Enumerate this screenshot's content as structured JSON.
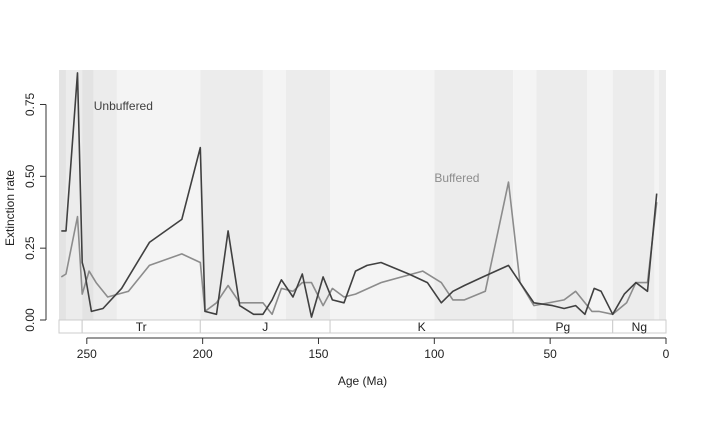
{
  "chart_data": {
    "type": "line",
    "xlabel": "Age (Ma)",
    "ylabel": "Extinction rate",
    "xlim": [
      262,
      0
    ],
    "ylim": [
      0,
      0.87
    ],
    "x_ticks": [
      250,
      200,
      150,
      100,
      50,
      0
    ],
    "y_ticks": [
      0.0,
      0.25,
      0.5,
      0.75
    ],
    "y_tick_labels": [
      "0.00",
      "0.25",
      "0.50",
      "0.75"
    ],
    "grid": false,
    "periods": [
      {
        "label": "",
        "start": 262,
        "end": 252
      },
      {
        "label": "Tr",
        "start": 252,
        "end": 201
      },
      {
        "label": "J",
        "start": 201,
        "end": 145
      },
      {
        "label": "K",
        "start": 145,
        "end": 66
      },
      {
        "label": "Pg",
        "start": 66,
        "end": 23
      },
      {
        "label": "Ng",
        "start": 23,
        "end": 0
      }
    ],
    "stage_bands": [
      {
        "start": 262,
        "end": 259,
        "shade": "dark"
      },
      {
        "start": 259,
        "end": 252,
        "shade": "light"
      },
      {
        "start": 252,
        "end": 247,
        "shade": "dark"
      },
      {
        "start": 247,
        "end": 237,
        "shade": "light"
      },
      {
        "start": 237,
        "end": 201,
        "shade": "lighter"
      },
      {
        "start": 201,
        "end": 174,
        "shade": "light"
      },
      {
        "start": 174,
        "end": 164,
        "shade": "lighter"
      },
      {
        "start": 164,
        "end": 145,
        "shade": "light"
      },
      {
        "start": 145,
        "end": 100,
        "shade": "lighter"
      },
      {
        "start": 100,
        "end": 66,
        "shade": "light"
      },
      {
        "start": 66,
        "end": 56,
        "shade": "lighter"
      },
      {
        "start": 56,
        "end": 34,
        "shade": "light"
      },
      {
        "start": 34,
        "end": 23,
        "shade": "lighter"
      },
      {
        "start": 23,
        "end": 5,
        "shade": "light"
      },
      {
        "start": 5,
        "end": 3,
        "shade": "lighter"
      },
      {
        "start": 3,
        "end": 0,
        "shade": "light"
      }
    ],
    "series": [
      {
        "name": "Unbuffered",
        "color": "#404040",
        "label_at": [
          247,
          0.73
        ],
        "x": [
          261,
          259,
          254,
          252,
          251,
          248,
          243,
          235,
          223,
          209,
          201,
          199,
          194,
          189,
          184,
          178,
          174,
          170,
          166,
          161,
          157,
          153,
          148,
          144,
          139,
          134,
          129,
          123,
          111,
          103,
          97,
          92,
          87,
          79,
          68,
          63,
          57,
          49,
          44,
          39,
          35,
          31,
          28,
          23,
          18,
          13,
          8,
          4
        ],
        "y": [
          0.31,
          0.31,
          0.86,
          0.2,
          0.17,
          0.03,
          0.04,
          0.11,
          0.27,
          0.35,
          0.6,
          0.03,
          0.02,
          0.31,
          0.05,
          0.02,
          0.02,
          0.07,
          0.14,
          0.08,
          0.16,
          0.01,
          0.15,
          0.07,
          0.06,
          0.17,
          0.19,
          0.2,
          0.16,
          0.13,
          0.06,
          0.1,
          0.12,
          0.15,
          0.19,
          0.13,
          0.06,
          0.05,
          0.04,
          0.05,
          0.02,
          0.11,
          0.1,
          0.02,
          0.09,
          0.13,
          0.1,
          0.44
        ]
      },
      {
        "name": "Buffered",
        "color": "#8c8c8c",
        "label_at": [
          100,
          0.48
        ],
        "x": [
          261,
          259,
          254,
          252,
          249,
          246,
          241,
          232,
          223,
          209,
          201,
          199,
          194,
          189,
          184,
          174,
          170,
          166,
          161,
          157,
          153,
          148,
          144,
          139,
          134,
          123,
          105,
          97,
          92,
          87,
          78,
          68,
          63,
          57,
          44,
          39,
          32,
          29,
          23,
          17,
          13,
          8,
          4
        ],
        "y": [
          0.15,
          0.16,
          0.36,
          0.09,
          0.17,
          0.13,
          0.08,
          0.1,
          0.19,
          0.23,
          0.2,
          0.03,
          0.06,
          0.12,
          0.06,
          0.06,
          0.02,
          0.11,
          0.1,
          0.13,
          0.13,
          0.05,
          0.11,
          0.08,
          0.09,
          0.13,
          0.17,
          0.13,
          0.07,
          0.07,
          0.1,
          0.48,
          0.13,
          0.05,
          0.07,
          0.1,
          0.03,
          0.03,
          0.02,
          0.06,
          0.13,
          0.13,
          0.41
        ]
      }
    ]
  },
  "colors": {
    "band_dark": "#e3e3e3",
    "band_light": "#ececec",
    "band_lighter": "#f4f4f4",
    "period_box": "#ffffff",
    "period_border": "#cccccc",
    "axis": "#333333"
  }
}
